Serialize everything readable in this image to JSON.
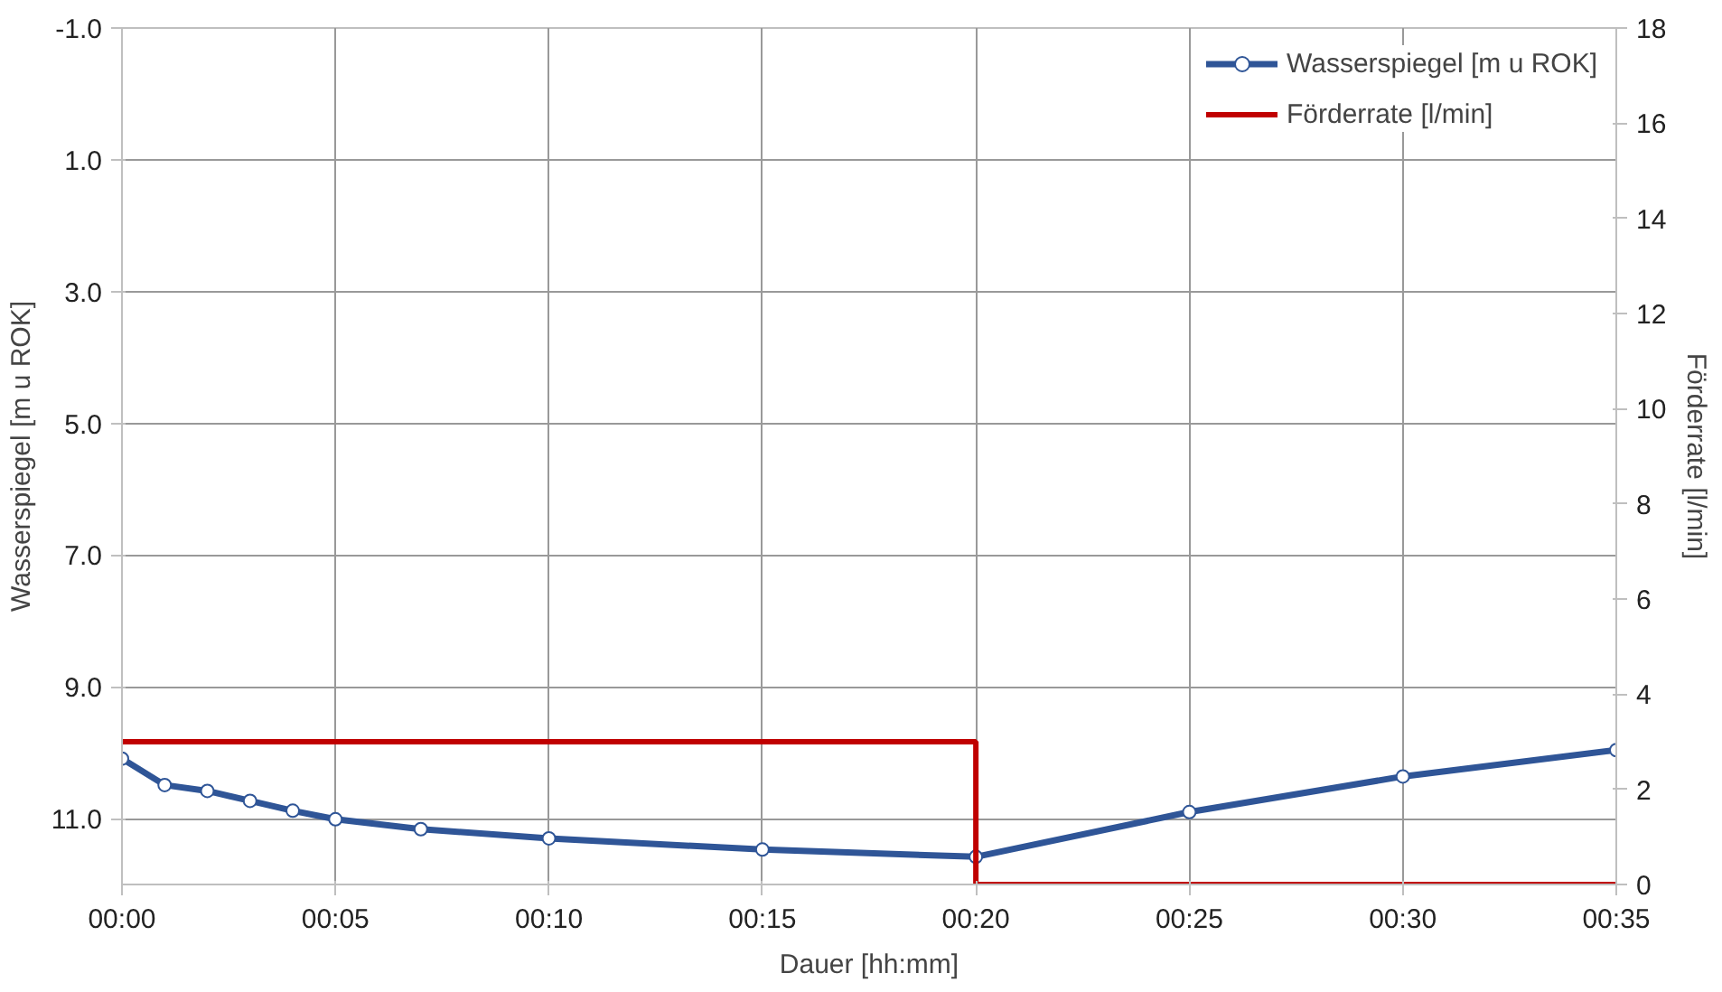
{
  "chart_data": {
    "type": "line",
    "xlabel": "Dauer [hh:mm]",
    "ylabel": "Wasserspiegel [m u ROK]",
    "y2label": "Förderrate [l/min]",
    "xlim": [
      0,
      35
    ],
    "xticks": [
      {
        "value": 0,
        "label": "00:00"
      },
      {
        "value": 5,
        "label": "00:05"
      },
      {
        "value": 10,
        "label": "00:10"
      },
      {
        "value": 15,
        "label": "00:15"
      },
      {
        "value": 20,
        "label": "00:20"
      },
      {
        "value": 25,
        "label": "00:25"
      },
      {
        "value": 30,
        "label": "00:30"
      },
      {
        "value": 35,
        "label": "00:35"
      }
    ],
    "ylim": [
      12.0,
      -1.0
    ],
    "yticks": [
      {
        "value": -1,
        "label": "-1.0"
      },
      {
        "value": 1,
        "label": "1.0"
      },
      {
        "value": 3,
        "label": "3.0"
      },
      {
        "value": 5,
        "label": "5.0"
      },
      {
        "value": 7,
        "label": "7.0"
      },
      {
        "value": 9,
        "label": "9.0"
      },
      {
        "value": 11,
        "label": "11.0"
      }
    ],
    "y2lim": [
      0,
      18
    ],
    "y2ticks": [
      0,
      2,
      4,
      6,
      8,
      10,
      12,
      14,
      16,
      18
    ],
    "grid": true,
    "legend": "top right",
    "series": [
      {
        "name": "Wasserspiegel [m u ROK]",
        "color": "#2f5597",
        "marker": "circle",
        "x": [
          0,
          1,
          2,
          3,
          4,
          5,
          7,
          10,
          15,
          20,
          25,
          30,
          35
        ],
        "values": [
          10.09,
          10.49,
          10.58,
          10.73,
          10.88,
          11.01,
          11.16,
          11.3,
          11.47,
          11.58,
          10.9,
          10.36,
          9.96
        ]
      },
      {
        "name": "Förderrate [l/min]",
        "color": "#c00000",
        "type": "step",
        "axis": "y2",
        "x": [
          0,
          20,
          35
        ],
        "values": [
          3,
          0,
          0
        ]
      }
    ]
  }
}
